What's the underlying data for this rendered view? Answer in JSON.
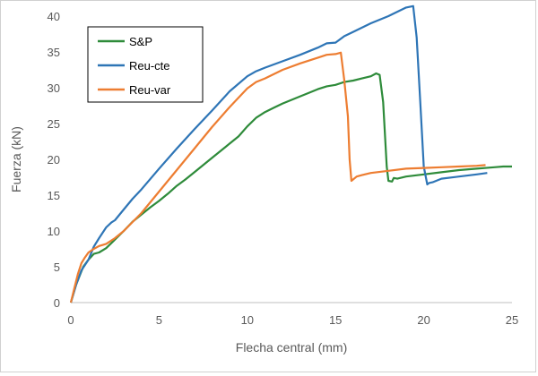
{
  "chart_data": {
    "type": "line",
    "title": "",
    "xlabel": "Flecha central (mm)",
    "ylabel": "Fuerza (kN)",
    "xlim": [
      0,
      25
    ],
    "ylim": [
      0,
      40
    ],
    "xticks": [
      0,
      5,
      10,
      15,
      20,
      25
    ],
    "yticks": [
      0,
      5,
      10,
      15,
      20,
      25,
      30,
      35,
      40
    ],
    "grid": false,
    "legend_position": "top-left",
    "series": [
      {
        "name": "S&P",
        "color": "#2e8b3a",
        "x": [
          0,
          0.3,
          0.7,
          1.0,
          1.3,
          1.6,
          2.0,
          2.5,
          3.0,
          3.5,
          4.0,
          4.5,
          5.0,
          5.5,
          6.0,
          6.5,
          7.0,
          7.5,
          8.0,
          8.5,
          9.0,
          9.5,
          10.0,
          10.5,
          11.0,
          11.5,
          12.0,
          12.5,
          13.0,
          13.5,
          14.0,
          14.5,
          15.0,
          15.5,
          16.0,
          16.5,
          17.0,
          17.3,
          17.5,
          17.7,
          17.9,
          18.0,
          18.2,
          18.3,
          18.5,
          19.0,
          20.0,
          21.0,
          22.0,
          23.0,
          24.0,
          24.5,
          25.0
        ],
        "y": [
          0,
          2.5,
          5.0,
          6.0,
          6.8,
          7.0,
          7.6,
          8.8,
          10.0,
          11.3,
          12.3,
          13.3,
          14.2,
          15.2,
          16.3,
          17.2,
          18.2,
          19.2,
          20.2,
          21.2,
          22.2,
          23.2,
          24.6,
          25.8,
          26.6,
          27.2,
          27.8,
          28.3,
          28.8,
          29.3,
          29.8,
          30.2,
          30.4,
          30.8,
          31.0,
          31.3,
          31.6,
          32.0,
          31.8,
          28.0,
          19.0,
          17.0,
          16.9,
          17.4,
          17.3,
          17.6,
          17.9,
          18.2,
          18.5,
          18.7,
          18.9,
          19.0,
          19.0
        ]
      },
      {
        "name": "Reu-cte",
        "color": "#2e75b6",
        "x": [
          0,
          0.3,
          0.6,
          1.0,
          1.3,
          1.6,
          2.0,
          2.3,
          2.5,
          3.0,
          3.5,
          4.0,
          5.0,
          6.0,
          7.0,
          8.0,
          9.0,
          10.0,
          10.5,
          11.0,
          12.0,
          13.0,
          14.0,
          14.5,
          15.0,
          15.5,
          16.0,
          17.0,
          18.0,
          19.0,
          19.4,
          19.6,
          19.8,
          20.0,
          20.2,
          20.3,
          20.5,
          21.0,
          22.0,
          23.0,
          23.6
        ],
        "y": [
          0,
          2.5,
          4.5,
          6.0,
          7.8,
          9.0,
          10.5,
          11.2,
          11.5,
          13.0,
          14.5,
          15.8,
          18.7,
          21.5,
          24.2,
          26.8,
          29.5,
          31.6,
          32.3,
          32.8,
          33.7,
          34.6,
          35.6,
          36.2,
          36.3,
          37.2,
          37.8,
          39.0,
          40.0,
          41.2,
          41.4,
          37.0,
          28.0,
          19.0,
          16.5,
          16.7,
          16.8,
          17.3,
          17.6,
          17.9,
          18.1
        ]
      },
      {
        "name": "Reu-var",
        "color": "#ed7d31",
        "x": [
          0,
          0.2,
          0.4,
          0.6,
          0.8,
          1.0,
          1.3,
          1.6,
          2.0,
          2.5,
          3.0,
          4.0,
          5.0,
          6.0,
          7.0,
          8.0,
          9.0,
          10.0,
          10.5,
          11.0,
          12.0,
          13.0,
          14.0,
          14.5,
          15.0,
          15.3,
          15.5,
          15.7,
          15.8,
          15.9,
          16.0,
          16.2,
          16.5,
          17.0,
          18.0,
          19.0,
          20.0,
          21.0,
          22.0,
          23.0,
          23.5
        ],
        "y": [
          0,
          2.0,
          4.0,
          5.5,
          6.3,
          7.0,
          7.5,
          7.9,
          8.2,
          9.0,
          10.0,
          12.5,
          15.5,
          18.5,
          21.5,
          24.5,
          27.3,
          29.9,
          30.8,
          31.3,
          32.5,
          33.4,
          34.2,
          34.6,
          34.7,
          34.9,
          31.0,
          26.0,
          20.0,
          17.0,
          17.2,
          17.6,
          17.8,
          18.1,
          18.4,
          18.7,
          18.8,
          18.9,
          19.0,
          19.1,
          19.2
        ]
      }
    ]
  }
}
